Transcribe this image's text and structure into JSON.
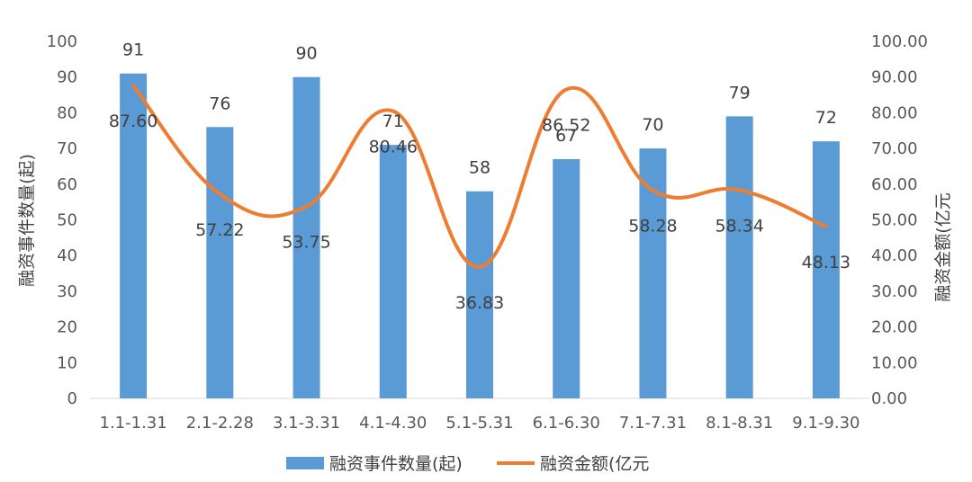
{
  "chart_data": {
    "type": "bar",
    "categories": [
      "1.1-1.31",
      "2.1-2.28",
      "3.1-3.31",
      "4.1-4.30",
      "5.1-5.31",
      "6.1-6.30",
      "7.1-7.31",
      "8.1-8.31",
      "9.1-9.30"
    ],
    "series": [
      {
        "name": "融资事件数量(起)",
        "type": "bar",
        "axis": "left",
        "color": "#5B9BD5",
        "values": [
          91,
          76,
          90,
          71,
          58,
          67,
          70,
          79,
          72
        ],
        "labels": [
          "91",
          "76",
          "90",
          "71",
          "58",
          "67",
          "70",
          "79",
          "72"
        ]
      },
      {
        "name": "融资金额(亿元",
        "type": "line",
        "smooth": true,
        "axis": "right",
        "color": "#ED7D31",
        "values": [
          87.6,
          57.22,
          53.75,
          80.46,
          36.83,
          86.52,
          58.28,
          58.34,
          48.13
        ],
        "labels": [
          "87.60",
          "57.22",
          "53.75",
          "80.46",
          "36.83",
          "86.52",
          "58.28",
          "58.34",
          "48.13"
        ]
      }
    ],
    "ylabel": "融资事件数量(起)",
    "y2label": "融资金额(亿元",
    "ylim": [
      0,
      100
    ],
    "y2lim": [
      0,
      100
    ],
    "yticks": [
      "0",
      "10",
      "20",
      "30",
      "40",
      "50",
      "60",
      "70",
      "80",
      "90",
      "100"
    ],
    "y2ticks": [
      "0.00",
      "10.00",
      "20.00",
      "30.00",
      "40.00",
      "50.00",
      "60.00",
      "70.00",
      "80.00",
      "90.00",
      "100.00"
    ],
    "grid": false,
    "legend": "bottom"
  }
}
